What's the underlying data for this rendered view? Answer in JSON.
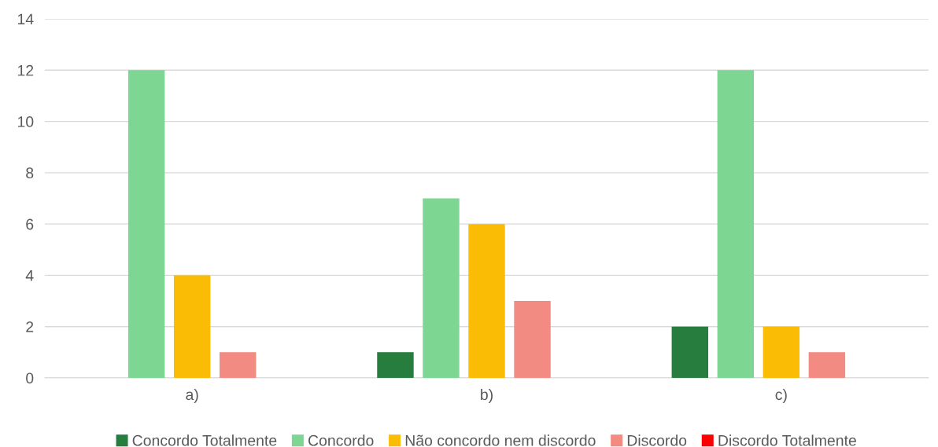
{
  "chart_data": {
    "type": "bar",
    "categories": [
      "a)",
      "b)",
      "c)"
    ],
    "series": [
      {
        "name": "Concordo Totalmente",
        "color": "#267d3e",
        "values": [
          0,
          1,
          2
        ]
      },
      {
        "name": "Concordo",
        "color": "#7ed693",
        "values": [
          12,
          7,
          12
        ]
      },
      {
        "name": "Não concordo nem discordo",
        "color": "#fbbc05",
        "values": [
          4,
          6,
          2
        ]
      },
      {
        "name": "Discordo",
        "color": "#f28b82",
        "values": [
          1,
          3,
          1
        ]
      },
      {
        "name": "Discordo Totalmente",
        "color": "#ff0000",
        "values": [
          0,
          0,
          0
        ]
      }
    ],
    "ylim": [
      0,
      14
    ],
    "yticks": [
      0,
      2,
      4,
      6,
      8,
      10,
      12,
      14
    ],
    "grid": "y",
    "legend": "bottom"
  }
}
